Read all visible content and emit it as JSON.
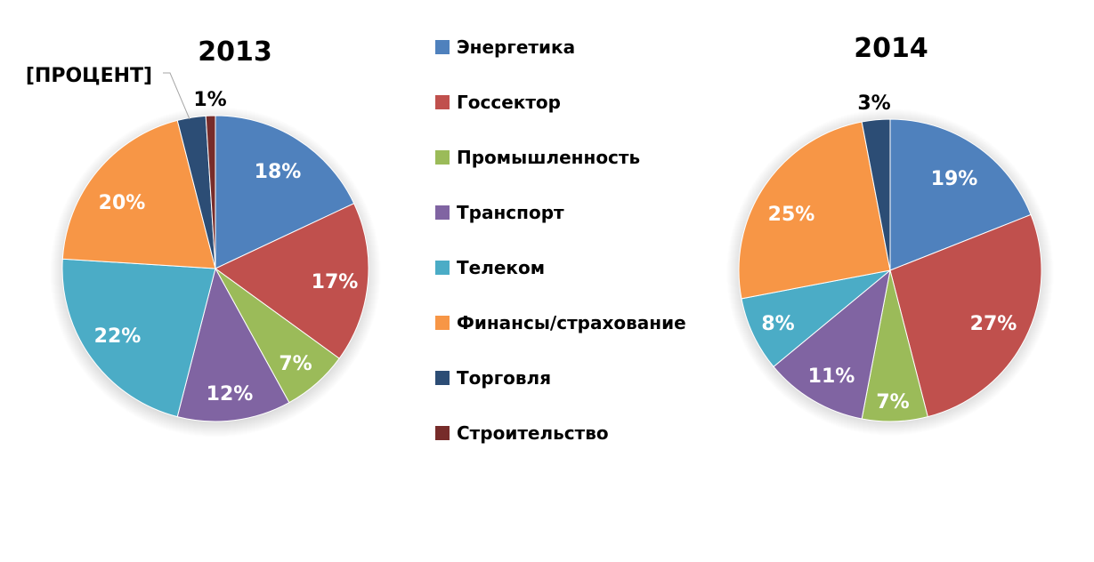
{
  "chart_data": [
    {
      "type": "pie",
      "title": "2013",
      "categories": [
        "Энергетика",
        "Госсектор",
        "Промышленность",
        "Транспорт",
        "Телеком",
        "Финансы/страхование",
        "Торговля",
        "Строительство"
      ],
      "values": [
        18,
        17,
        7,
        12,
        22,
        20,
        3,
        1
      ],
      "labels": [
        "18%",
        "17%",
        "7%",
        "12%",
        "22%",
        "20%",
        "[ПРОЦЕНТ]",
        "1%"
      ],
      "start_angle": "12 o'clock, clockwise",
      "legend_position": "center"
    },
    {
      "type": "pie",
      "title": "2014",
      "categories": [
        "Энергетика",
        "Госсектор",
        "Промышленность",
        "Транспорт",
        "Телеком",
        "Финансы/страхование",
        "Торговля",
        "Строительство"
      ],
      "values": [
        19,
        27,
        7,
        11,
        8,
        25,
        3,
        0
      ],
      "labels": [
        "19%",
        "27%",
        "7%",
        "11%",
        "8%",
        "25%",
        "3%",
        ""
      ],
      "start_angle": "12 o'clock, clockwise",
      "legend_position": "center"
    }
  ],
  "colors": [
    "#4f81bd",
    "#c0504d",
    "#9bbb59",
    "#8064a2",
    "#4bacc6",
    "#f79646",
    "#2c4d75",
    "#772c2a"
  ],
  "legend": {
    "items": [
      {
        "label": "Энергетика",
        "color": "#4f81bd"
      },
      {
        "label": "Госсектор",
        "color": "#c0504d"
      },
      {
        "label": "Промышленность",
        "color": "#9bbb59"
      },
      {
        "label": "Транспорт",
        "color": "#8064a2"
      },
      {
        "label": "Телеком",
        "color": "#4bacc6"
      },
      {
        "label": "Финансы/страхование",
        "color": "#f79646"
      },
      {
        "label": "Торговля",
        "color": "#2c4d75"
      },
      {
        "label": "Строительство",
        "color": "#772c2a"
      }
    ]
  },
  "pie_2013": {
    "title": "2013",
    "labels": {
      "energy": "18%",
      "gov": "17%",
      "industry": "7%",
      "transport": "12%",
      "telecom": "22%",
      "finance": "20%",
      "trade": "[ПРОЦЕНТ]",
      "construction": "1%"
    }
  },
  "pie_2014": {
    "title": "2014",
    "labels": {
      "energy": "19%",
      "gov": "27%",
      "industry": "7%",
      "transport": "11%",
      "telecom": "8%",
      "finance": "25%",
      "trade": "3%"
    }
  }
}
